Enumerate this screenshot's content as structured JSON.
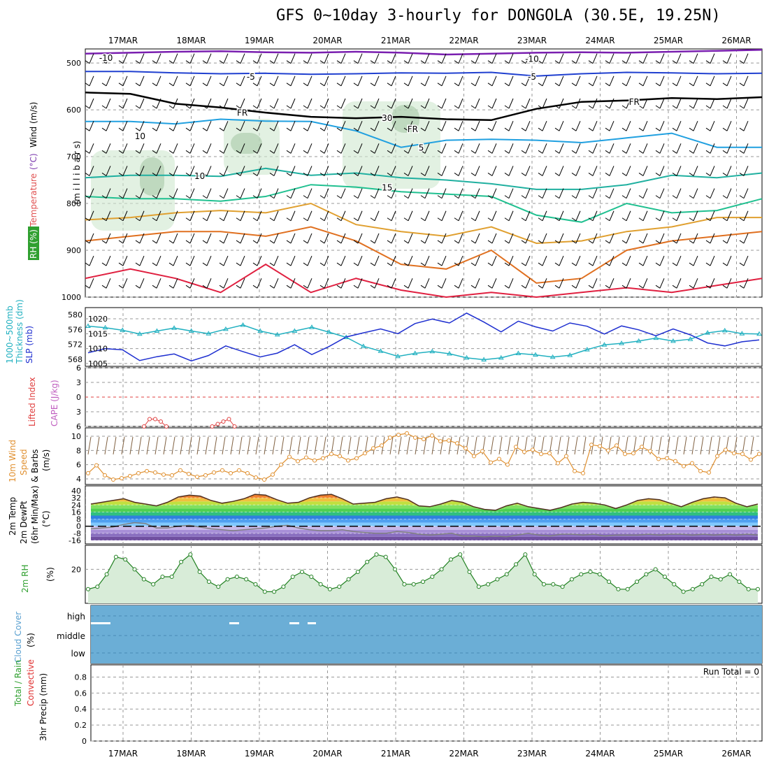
{
  "title": "GFS 0~10day 3-hourly for DONGOLA (30.5E, 19.25N)",
  "dates": [
    "17MAR",
    "18MAR",
    "19MAR",
    "20MAR",
    "21MAR",
    "22MAR",
    "23MAR",
    "24MAR",
    "25MAR",
    "26MAR"
  ],
  "colors": {
    "purple": "#7a1fb0",
    "blue": "#2040d0",
    "cyan": "#20a0e0",
    "teal": "#20b0a0",
    "green": "#20c090",
    "orange": "#e0a030",
    "darkorange": "#e07020",
    "red": "#e02040",
    "magenta": "#d01080",
    "slp": "#1e2fd0",
    "thick": "#20b0c0",
    "wind10": "#e09030",
    "rh": "#208020",
    "cloud": "#6baed6"
  },
  "chart_data": [
    {
      "type": "contour",
      "panel": "upper-air",
      "yaxis_label_parts": [
        "RH (%)",
        "Temperature",
        "(°C)",
        "Wind (m/s)"
      ],
      "ylabel": "(m i l l i b a r s)",
      "ylim": [
        1000,
        470
      ],
      "yticks": [
        500,
        600,
        700,
        800,
        900,
        1000
      ],
      "contour_labels": [
        {
          "text": "-10",
          "x": "16MAR18",
          "y": 488
        },
        {
          "text": "-10",
          "x": "23MAR00",
          "y": 490
        },
        {
          "text": "-5",
          "x": "18MAR21",
          "y": 528
        },
        {
          "text": "-5",
          "x": "23MAR00",
          "y": 528
        },
        {
          "text": "FR",
          "x": "18MAR18",
          "y": 605
        },
        {
          "text": "FR",
          "x": "21MAR06",
          "y": 640
        },
        {
          "text": "FR",
          "x": "24MAR12",
          "y": 582
        },
        {
          "text": "5",
          "x": "21MAR09",
          "y": 680
        },
        {
          "text": "10",
          "x": "18MAR03",
          "y": 740
        },
        {
          "text": "15",
          "x": "20MAR21",
          "y": 765
        },
        {
          "text": "10",
          "x": "17MAR06",
          "y": 655
        },
        {
          "text": "30",
          "x": "20MAR21",
          "y": 616
        }
      ],
      "isotherm_pressure": {
        "minus10": [
          480,
          478,
          476,
          475,
          477,
          478,
          476,
          478,
          482,
          480,
          478,
          477,
          478,
          476,
          474,
          472
        ],
        "minus5": [
          518,
          518,
          521,
          523,
          522,
          524,
          523,
          521,
          522,
          520,
          528,
          523,
          520,
          521,
          523,
          522
        ],
        "freezing": [
          563,
          566,
          587,
          595,
          606,
          615,
          618,
          615,
          620,
          622,
          598,
          583,
          580,
          575,
          577,
          573
        ],
        "plus5": [
          625,
          625,
          630,
          620,
          624,
          625,
          645,
          680,
          665,
          663,
          665,
          670,
          660,
          650,
          680,
          680
        ]
      }
    },
    {
      "type": "line",
      "panel": "slp-thickness",
      "yaxis_label_parts": [
        "1000~500mb",
        "Thickness (dm)",
        "SLP (mb)"
      ],
      "y_left_ticks": [
        568,
        572,
        576,
        580
      ],
      "y_right_ticks": [
        1005,
        1010,
        1015,
        1020
      ],
      "series": [
        {
          "unit": "dm",
          "values": [
            576.9,
            576.5,
            575.8,
            574.8,
            575.6,
            576.4,
            575.6,
            574.9,
            576.1,
            577.2,
            575.6,
            574.6,
            575.6,
            576.6,
            575.3,
            573.9,
            571.5,
            570.2,
            568.8,
            569.6,
            570.1,
            569.5,
            568.4,
            567.9,
            568.4,
            569.6,
            569.2,
            568.6,
            569.1,
            570.6,
            571.9,
            572.3,
            572.9,
            573.7,
            572.9,
            573.4,
            575.1,
            575.7,
            574.9,
            574.8
          ]
        },
        {
          "unit": "mb",
          "values": [
            1008.6,
            1010.0,
            1009.6,
            1006.0,
            1007.3,
            1008.2,
            1005.9,
            1007.7,
            1010.9,
            1009.0,
            1007.2,
            1008.5,
            1011.3,
            1008.0,
            1010.7,
            1013.9,
            1015.3,
            1016.6,
            1015.0,
            1018.4,
            1019.9,
            1018.6,
            1021.9,
            1018.9,
            1015.6,
            1019.2,
            1017.3,
            1015.9,
            1018.6,
            1017.5,
            1014.9,
            1017.6,
            1016.3,
            1014.3,
            1016.6,
            1014.6,
            1011.9,
            1010.9,
            1012.3,
            1012.9
          ]
        }
      ]
    },
    {
      "type": "line",
      "panel": "cape-li",
      "yaxis_label_parts": [
        "Lifted Index",
        "CAPE (J/kg)"
      ],
      "y_ticks": [
        -6,
        -3,
        0,
        3,
        6
      ],
      "series": [
        {
          "unit": "lifted index",
          "values_17MAR": [
            6,
            4.5,
            4.5,
            5,
            6
          ],
          "values_18MAR": [
            6,
            5.5,
            5,
            4.5,
            6
          ]
        }
      ]
    },
    {
      "type": "line",
      "panel": "wind10m",
      "yaxis_label_parts": [
        "10m Wind",
        "Speed",
        "& Barbs",
        "(m/s)"
      ],
      "y_ticks": [
        4,
        6,
        8,
        10
      ],
      "series": [
        {
          "unit": "m/s",
          "values": [
            4.8,
            5.9,
            4.5,
            3.9,
            4.1,
            4.4,
            4.8,
            5.1,
            4.9,
            4.6,
            4.5,
            5.2,
            4.7,
            4.3,
            4.5,
            4.9,
            5.2,
            4.8,
            5.2,
            4.8,
            4.2,
            3.9,
            4.6,
            6.0,
            7.1,
            6.5,
            7.0,
            6.6,
            6.9,
            7.5,
            7.2,
            6.6,
            6.9,
            7.6,
            8.3,
            8.7,
            9.8,
            10.2,
            10.4,
            9.8,
            9.6,
            10.1,
            9.3,
            9.4,
            9.0,
            8.3,
            7.2,
            7.9,
            6.3,
            6.8,
            6.0,
            8.5,
            7.8,
            8.1,
            7.5,
            7.6,
            6.2,
            7.2,
            5.1,
            4.8,
            8.8,
            8.6,
            8.0,
            8.7,
            7.5,
            7.6,
            8.5,
            7.9,
            6.8,
            6.9,
            6.5,
            5.8,
            6.2,
            5.1,
            4.9,
            7.2,
            8.1,
            7.6,
            7.5,
            6.7,
            7.5
          ]
        }
      ]
    },
    {
      "type": "area",
      "panel": "temp2m",
      "yaxis_label_parts": [
        "2m Temp",
        "2m DewPt",
        "(6hr Min/Max)",
        "(°C)"
      ],
      "y_ticks": [
        -16,
        -8,
        0,
        8,
        16,
        24,
        32,
        40
      ],
      "series": [
        {
          "unit": "°C",
          "name": "",
          "values": [
            25,
            27,
            29,
            31,
            27,
            25,
            23,
            27,
            33,
            35,
            34,
            29,
            26,
            28,
            31,
            36,
            35,
            30,
            26,
            27,
            32,
            35,
            36,
            31,
            25,
            26,
            27,
            31,
            33,
            30,
            23,
            22,
            25,
            29,
            27,
            22,
            19,
            18,
            23,
            26,
            22,
            20,
            18,
            21,
            25,
            27,
            26,
            24,
            20,
            24,
            29,
            31,
            30,
            26,
            22,
            27,
            31,
            33,
            32,
            26,
            22,
            25
          ]
        },
        {
          "unit": "°C",
          "name": "",
          "values": [
            -3,
            -2,
            -1,
            2,
            4,
            3,
            -2,
            -2,
            0,
            1,
            -1,
            -3,
            -4,
            -5,
            -4,
            -3,
            -2,
            0,
            1,
            -2,
            -4,
            -5,
            -5,
            -4,
            -6,
            -7,
            -8,
            -8,
            -6,
            -7,
            -9,
            -10,
            -9,
            -8,
            -11,
            -11,
            -12,
            -11,
            -12,
            -10,
            -8,
            -10,
            -11,
            -9,
            -9,
            -10,
            -9,
            -11,
            -10,
            -10,
            -10,
            -9,
            -10,
            -9,
            -9,
            -10,
            -9,
            -10,
            -9,
            -10,
            -9,
            -10
          ]
        }
      ]
    },
    {
      "type": "line",
      "panel": "rh2m",
      "yaxis_label_parts": [
        "2m RH",
        "(%)"
      ],
      "y_ticks": [
        20
      ],
      "series": [
        {
          "unit": "%",
          "values": [
            12,
            13,
            18,
            25,
            24,
            20,
            16,
            14,
            17,
            17,
            23,
            26,
            19,
            15,
            13,
            16,
            17,
            16,
            14,
            11,
            11,
            13,
            17,
            19,
            17,
            14,
            12,
            13,
            16,
            19,
            23,
            26,
            25,
            20,
            14,
            14,
            15,
            17,
            20,
            24,
            26,
            19,
            13,
            14,
            16,
            18,
            22,
            26,
            18,
            14,
            14,
            13,
            16,
            18,
            19,
            18,
            15,
            12,
            12,
            15,
            18,
            20,
            17,
            14,
            11,
            12,
            14,
            17,
            16,
            18,
            15,
            12,
            12
          ]
        }
      ]
    },
    {
      "type": "bar",
      "panel": "cloud-cover",
      "yaxis_label_parts": [
        "Cloud Cover",
        "(%)"
      ],
      "levels": [
        "high",
        "middle",
        "low"
      ]
    },
    {
      "type": "bar",
      "panel": "precip",
      "yaxis_label_parts": [
        "Total / Rain",
        "Convective",
        "3hr Precip (mm)"
      ],
      "y_ticks": [
        "0",
        "0.2",
        "0.4",
        "0.6",
        "0.8"
      ],
      "run_total_label": "Run Total = 0"
    }
  ]
}
